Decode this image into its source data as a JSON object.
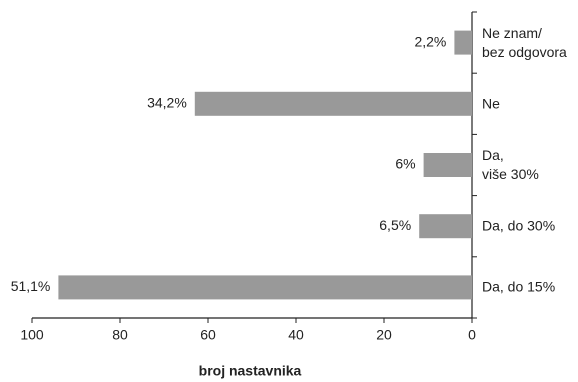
{
  "chart_data": {
    "type": "barh",
    "x_label": "broj nastavnika",
    "categories": [
      "Ne znam/\nbez odgovora",
      "Ne",
      "Da,\nviše 30%",
      "Da, do 30%",
      "Da, do 15%"
    ],
    "values": [
      4,
      63,
      11,
      12,
      94
    ],
    "percent": [
      2.2,
      34.2,
      6,
      6.5,
      51.1
    ],
    "percent_labels": [
      "2,2%",
      "34,2%",
      "6%",
      "6,5%",
      "51,1%"
    ],
    "color": "#999999",
    "xlim": [
      100,
      0
    ],
    "xticks": [
      100,
      80,
      60,
      40,
      20,
      0
    ]
  }
}
